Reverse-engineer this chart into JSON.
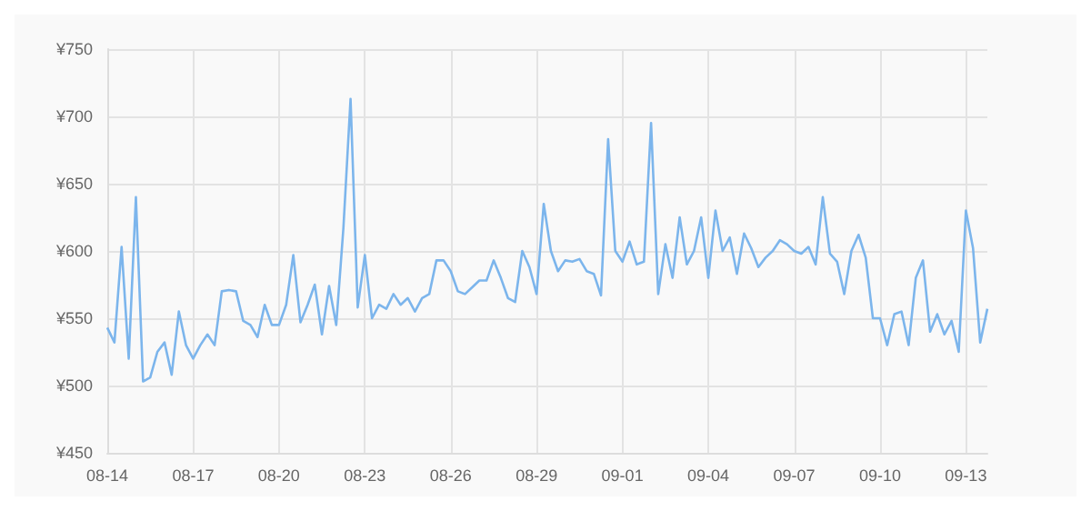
{
  "chart_data": {
    "type": "line",
    "categories": [
      "08-14",
      null,
      null,
      null,
      null,
      null,
      null,
      null,
      null,
      null,
      null,
      null,
      "08-17",
      null,
      null,
      null,
      null,
      null,
      null,
      null,
      null,
      null,
      null,
      null,
      "08-20",
      null,
      null,
      null,
      null,
      null,
      null,
      null,
      null,
      null,
      null,
      null,
      "08-23",
      null,
      null,
      null,
      null,
      null,
      null,
      null,
      null,
      null,
      null,
      null,
      "08-26",
      null,
      null,
      null,
      null,
      null,
      null,
      null,
      null,
      null,
      null,
      null,
      "08-29",
      null,
      null,
      null,
      null,
      null,
      null,
      null,
      null,
      null,
      null,
      null,
      "09-01",
      null,
      null,
      null,
      null,
      null,
      null,
      null,
      null,
      null,
      null,
      null,
      "09-04",
      null,
      null,
      null,
      null,
      null,
      null,
      null,
      null,
      null,
      null,
      null,
      "09-07",
      null,
      null,
      null,
      null,
      null,
      null,
      null,
      null,
      null,
      null,
      null,
      "09-10",
      null,
      null,
      null,
      null,
      null,
      null,
      null,
      null,
      null,
      null,
      null,
      "09-13",
      null,
      null,
      null
    ],
    "series": [
      {
        "color": "#7cb5ec",
        "values": [
          543,
          532,
          603,
          520,
          640,
          503,
          506,
          525,
          532,
          508,
          555,
          530,
          520,
          530,
          538,
          530,
          570,
          571,
          570,
          548,
          545,
          536,
          560,
          545,
          545,
          560,
          597,
          547,
          560,
          575,
          538,
          574,
          545,
          617,
          713,
          558,
          597,
          550,
          560,
          557,
          568,
          560,
          565,
          555,
          565,
          568,
          593,
          593,
          585,
          570,
          568,
          573,
          578,
          578,
          593,
          580,
          565,
          562,
          600,
          588,
          568,
          635,
          600,
          585,
          593,
          592,
          594,
          585,
          583,
          567,
          683,
          600,
          592,
          607,
          590,
          592,
          695,
          568,
          605,
          580,
          625,
          590,
          600,
          625,
          580,
          630,
          600,
          610,
          583,
          613,
          602,
          588,
          595,
          600,
          608,
          605,
          600,
          598,
          603,
          590,
          640,
          598,
          592,
          568,
          600,
          612,
          595,
          550,
          550,
          530,
          553,
          555,
          530,
          580,
          593,
          540,
          553,
          538,
          548,
          525,
          630,
          602,
          532,
          557
        ]
      }
    ],
    "ylim": [
      450,
      750
    ],
    "yticks": [
      {
        "value": 450,
        "label": "¥450"
      },
      {
        "value": 500,
        "label": "¥500"
      },
      {
        "value": 550,
        "label": "¥550"
      },
      {
        "value": 600,
        "label": "¥600"
      },
      {
        "value": 650,
        "label": "¥650"
      },
      {
        "value": 700,
        "label": "¥700"
      },
      {
        "value": 750,
        "label": "¥750"
      }
    ],
    "grid": true,
    "marker": "none",
    "line_style": "solid"
  }
}
